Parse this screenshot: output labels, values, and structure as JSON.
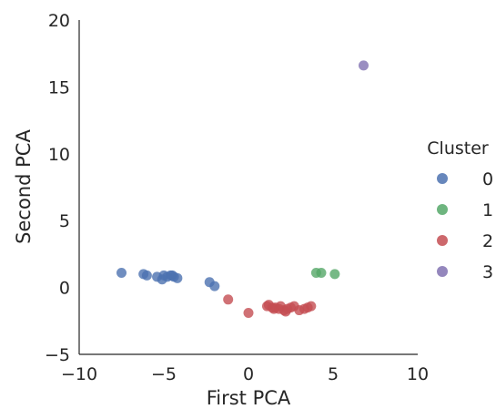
{
  "chart_data": {
    "type": "scatter",
    "xlabel": "First PCA",
    "ylabel": "Second PCA",
    "xlim": [
      -10,
      10
    ],
    "ylim": [
      -5,
      20
    ],
    "xticks": [
      -10,
      -5,
      0,
      5,
      10
    ],
    "yticks": [
      -5,
      0,
      5,
      10,
      15,
      20
    ],
    "xtick_labels": [
      "−10",
      "−5",
      "0",
      "5",
      "10"
    ],
    "ytick_labels": [
      "−5",
      "0",
      "5",
      "10",
      "15",
      "20"
    ],
    "grid": false,
    "legend_title": "Cluster",
    "legend_position": "right",
    "series": [
      {
        "name": "0",
        "color": "#4c72b0",
        "points": [
          [
            -7.5,
            1.1
          ],
          [
            -6.2,
            1.0
          ],
          [
            -6.0,
            0.9
          ],
          [
            -5.4,
            0.8
          ],
          [
            -5.0,
            0.9
          ],
          [
            -4.8,
            0.8
          ],
          [
            -4.6,
            0.9
          ],
          [
            -4.4,
            0.8
          ],
          [
            -4.2,
            0.7
          ],
          [
            -5.1,
            0.6
          ],
          [
            -4.5,
            0.9
          ],
          [
            -2.3,
            0.4
          ],
          [
            -2.0,
            0.1
          ]
        ]
      },
      {
        "name": "1",
        "color": "#55a868",
        "points": [
          [
            4.0,
            1.1
          ],
          [
            4.3,
            1.1
          ],
          [
            5.1,
            1.0
          ]
        ]
      },
      {
        "name": "2",
        "color": "#c44e52",
        "points": [
          [
            -1.2,
            -0.9
          ],
          [
            0.0,
            -1.9
          ],
          [
            1.1,
            -1.4
          ],
          [
            1.2,
            -1.3
          ],
          [
            1.4,
            -1.5
          ],
          [
            1.6,
            -1.5
          ],
          [
            1.8,
            -1.6
          ],
          [
            1.9,
            -1.4
          ],
          [
            2.1,
            -1.7
          ],
          [
            2.3,
            -1.6
          ],
          [
            2.5,
            -1.5
          ],
          [
            2.7,
            -1.4
          ],
          [
            3.0,
            -1.7
          ],
          [
            3.3,
            -1.6
          ],
          [
            3.5,
            -1.5
          ],
          [
            3.7,
            -1.4
          ],
          [
            2.2,
            -1.8
          ],
          [
            1.5,
            -1.6
          ]
        ]
      },
      {
        "name": "3",
        "color": "#8172b2",
        "points": [
          [
            6.8,
            16.6
          ]
        ]
      }
    ]
  }
}
